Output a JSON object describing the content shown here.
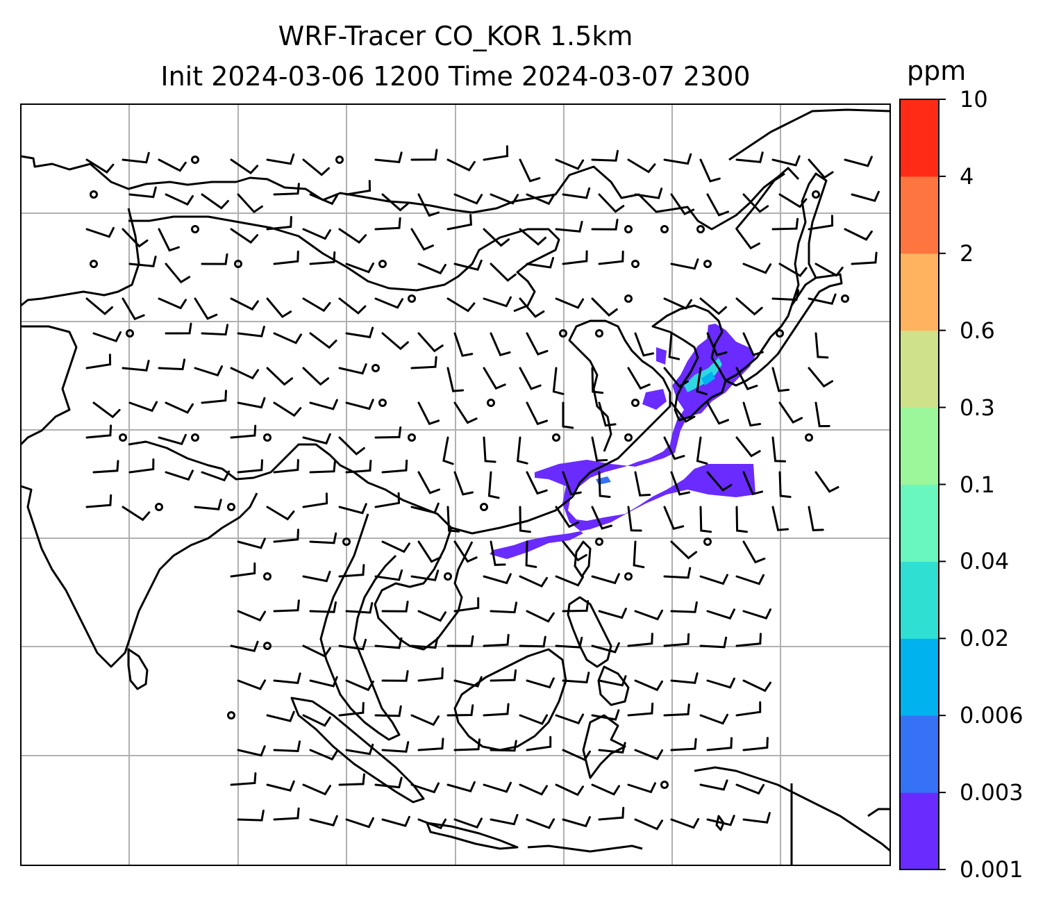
{
  "title": {
    "line1": "WRF-Tracer CO_KOR 1.5km",
    "line2": "Init 2024-03-06 1200 Time 2024-03-07 2300"
  },
  "colorbar": {
    "unit": "ppm",
    "levels": [
      "0.001",
      "0.003",
      "0.006",
      "0.02",
      "0.04",
      "0.1",
      "0.3",
      "0.6",
      "2",
      "4",
      "10"
    ],
    "colors": [
      "#6a2bff",
      "#3572f5",
      "#00b2ee",
      "#2fe0d2",
      "#6af7be",
      "#9bf799",
      "#cfe289",
      "#ffb35f",
      "#ff7540",
      "#ff2b17"
    ]
  },
  "map": {
    "gridlines": true,
    "wind_barbs": true,
    "tracer_fill_color": "#6a2bff",
    "tracer_core_color": "#2fd7e3",
    "coastline_color": "#000000"
  }
}
